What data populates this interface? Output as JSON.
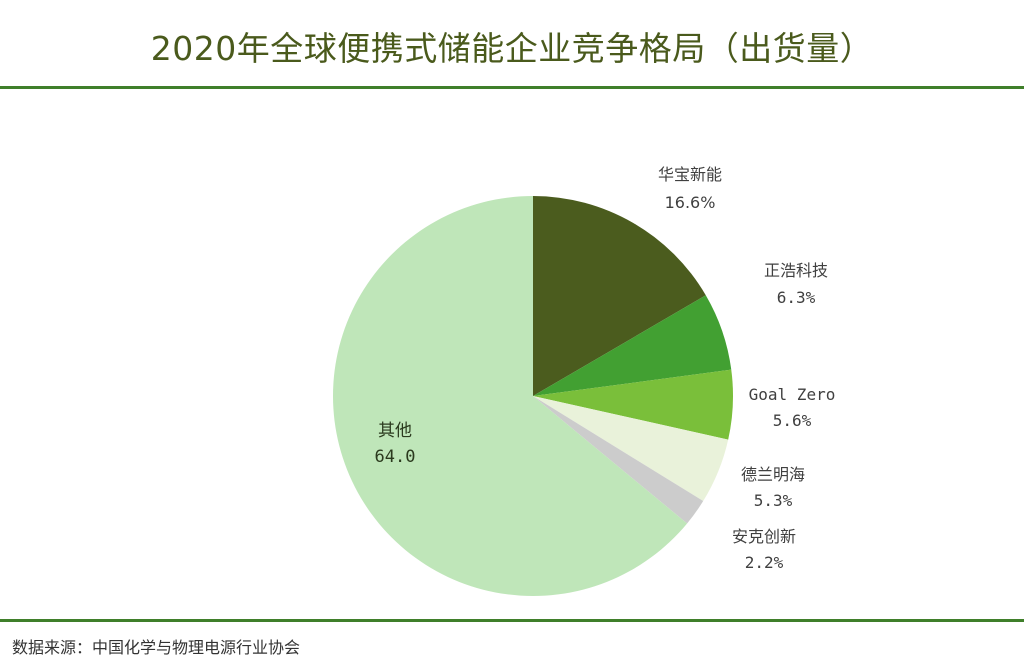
{
  "header": {
    "title": "2020年全球便携式储能企业竞争格局（出货量）"
  },
  "footer": {
    "source": "数据来源：中国化学与物理电源行业协会"
  },
  "chart_data": {
    "type": "pie",
    "title": "2020年全球便携式储能企业竞争格局（出货量）",
    "unit": "%",
    "start_angle": "12 o'clock, clockwise",
    "categories": [
      "华宝新能",
      "正浩科技",
      "Goal Zero",
      "德兰明海",
      "安克创新",
      "其他"
    ],
    "values": [
      16.6,
      6.3,
      5.6,
      5.3,
      2.2,
      64.0
    ],
    "labels": [
      "16.6%",
      "6.3%",
      "5.6%",
      "5.3%",
      "2.2%",
      "64.0"
    ],
    "colors": [
      "#4b5c1e",
      "#42a032",
      "#7abf3a",
      "#e9f2da",
      "#cccccc",
      "#bfe6b9"
    ],
    "legend": "none (data labels beside slices)",
    "source": "数据来源：中国化学与物理电源行业协会"
  }
}
